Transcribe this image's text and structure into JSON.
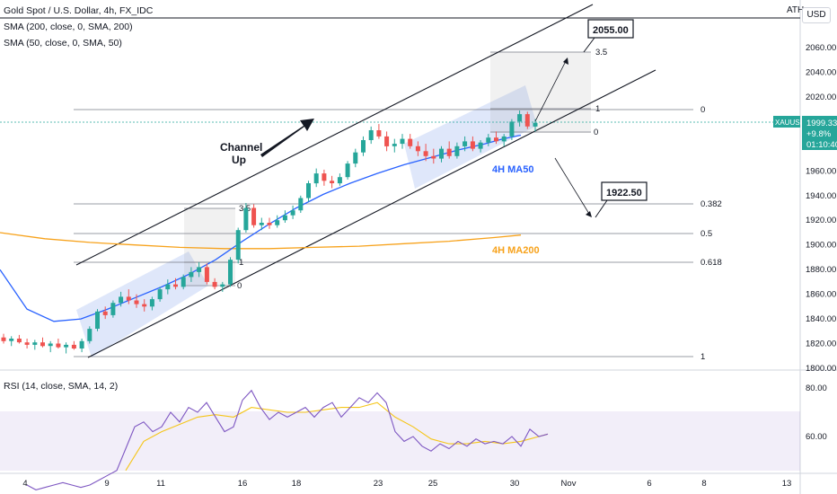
{
  "header": {
    "symbol_line": "Gold Spot / U.S. Dollar, 4h, FX_IDC",
    "sma200_label": "SMA (200, close, 0, SMA, 200)",
    "sma50_label": "SMA (50, close, 0, SMA, 50)",
    "rsi_label": "RSI (14, close, SMA, 14, 2)",
    "ath_label": "ATH",
    "currency_button": "USD"
  },
  "price_badge": {
    "symbol": "XAUUSD",
    "price": "1999.33",
    "change": "+9.8%",
    "timer": "01:10:40"
  },
  "annotations": {
    "channel_label_1": "Channel",
    "channel_label_2": "Up",
    "ma50_label": "4H MA50",
    "ma200_label": "4H MA200",
    "target_high": "2055.00",
    "target_low": "1922.50"
  },
  "fib_main": [
    "0",
    "0.382",
    "0.5",
    "0.618",
    "1"
  ],
  "fib_small_1": [
    "3.5",
    "1",
    "0"
  ],
  "fib_small_2": [
    "3.5",
    "1",
    "0"
  ],
  "colors": {
    "up": "#26a69a",
    "down": "#ef5350",
    "ma50": "#2962ff",
    "ma200": "#f7a21b",
    "rsi": "#7e57c2",
    "rsi_ma": "#f5c518",
    "channel_fill": "#c5d3f5"
  },
  "chart_data": {
    "type": "candlestick",
    "title": "Gold Spot / U.S. Dollar, 4h, FX_IDC",
    "y_axis": {
      "range": [
        1800,
        2080
      ],
      "ticks": [
        "2060.00",
        "2040.00",
        "2020.00",
        "2000.00",
        "1980.00",
        "1960.00",
        "1940.00",
        "1920.00",
        "1900.00",
        "1880.00",
        "1860.00",
        "1840.00",
        "1820.00",
        "1800.00"
      ]
    },
    "x_axis": {
      "ticks": [
        "4",
        "9",
        "11",
        "16",
        "18",
        "23",
        "25",
        "30",
        "Nov",
        "6",
        "8",
        "13"
      ]
    },
    "rsi_axis": {
      "ticks": [
        "80.00",
        "60.00"
      ]
    },
    "candles": [
      [
        1825,
        1828,
        1820,
        1822
      ],
      [
        1822,
        1826,
        1818,
        1824
      ],
      [
        1824,
        1827,
        1820,
        1821
      ],
      [
        1821,
        1824,
        1816,
        1819
      ],
      [
        1819,
        1823,
        1815,
        1821
      ],
      [
        1821,
        1825,
        1817,
        1818
      ],
      [
        1818,
        1822,
        1813,
        1820
      ],
      [
        1820,
        1824,
        1816,
        1817
      ],
      [
        1817,
        1821,
        1812,
        1819
      ],
      [
        1819,
        1822,
        1815,
        1816
      ],
      [
        1816,
        1824,
        1813,
        1822
      ],
      [
        1822,
        1834,
        1820,
        1832
      ],
      [
        1832,
        1848,
        1830,
        1846
      ],
      [
        1846,
        1850,
        1840,
        1843
      ],
      [
        1843,
        1855,
        1841,
        1853
      ],
      [
        1853,
        1862,
        1850,
        1858
      ],
      [
        1858,
        1864,
        1852,
        1855
      ],
      [
        1855,
        1860,
        1849,
        1852
      ],
      [
        1852,
        1856,
        1846,
        1850
      ],
      [
        1850,
        1858,
        1847,
        1856
      ],
      [
        1856,
        1866,
        1854,
        1864
      ],
      [
        1864,
        1872,
        1860,
        1868
      ],
      [
        1868,
        1873,
        1864,
        1866
      ],
      [
        1866,
        1876,
        1864,
        1874
      ],
      [
        1874,
        1882,
        1870,
        1878
      ],
      [
        1878,
        1886,
        1874,
        1882
      ],
      [
        1882,
        1885,
        1868,
        1870
      ],
      [
        1870,
        1873,
        1864,
        1866
      ],
      [
        1866,
        1870,
        1862,
        1868
      ],
      [
        1868,
        1890,
        1866,
        1888
      ],
      [
        1888,
        1914,
        1885,
        1912
      ],
      [
        1912,
        1934,
        1910,
        1930
      ],
      [
        1930,
        1933,
        1914,
        1916
      ],
      [
        1916,
        1922,
        1912,
        1918
      ],
      [
        1918,
        1922,
        1913,
        1916
      ],
      [
        1916,
        1924,
        1914,
        1920
      ],
      [
        1920,
        1928,
        1918,
        1924
      ],
      [
        1924,
        1932,
        1921,
        1928
      ],
      [
        1928,
        1940,
        1926,
        1938
      ],
      [
        1938,
        1952,
        1935,
        1950
      ],
      [
        1950,
        1962,
        1947,
        1958
      ],
      [
        1958,
        1961,
        1948,
        1952
      ],
      [
        1952,
        1956,
        1946,
        1950
      ],
      [
        1950,
        1958,
        1948,
        1955
      ],
      [
        1955,
        1968,
        1953,
        1966
      ],
      [
        1966,
        1978,
        1963,
        1975
      ],
      [
        1975,
        1988,
        1972,
        1985
      ],
      [
        1985,
        1996,
        1982,
        1993
      ],
      [
        1993,
        1998,
        1986,
        1988
      ],
      [
        1988,
        1992,
        1976,
        1980
      ],
      [
        1980,
        1986,
        1975,
        1982
      ],
      [
        1982,
        1990,
        1978,
        1986
      ],
      [
        1986,
        1990,
        1978,
        1980
      ],
      [
        1980,
        1984,
        1972,
        1976
      ],
      [
        1976,
        1982,
        1968,
        1972
      ],
      [
        1972,
        1978,
        1966,
        1970
      ],
      [
        1970,
        1980,
        1967,
        1978
      ],
      [
        1978,
        1984,
        1970,
        1972
      ],
      [
        1972,
        1983,
        1970,
        1980
      ],
      [
        1980,
        1988,
        1976,
        1984
      ],
      [
        1984,
        1988,
        1976,
        1978
      ],
      [
        1978,
        1985,
        1975,
        1983
      ],
      [
        1983,
        1990,
        1980,
        1987
      ],
      [
        1987,
        1992,
        1982,
        1984
      ],
      [
        1984,
        1990,
        1980,
        1988
      ],
      [
        1988,
        2002,
        1985,
        2000
      ],
      [
        2000,
        2009,
        1996,
        2006
      ],
      [
        2006,
        2008,
        1994,
        1996
      ],
      [
        1996,
        2002,
        1992,
        1999
      ]
    ],
    "ma50": [
      [
        0,
        1880
      ],
      [
        30,
        1848
      ],
      [
        60,
        1838
      ],
      [
        90,
        1840
      ],
      [
        120,
        1848
      ],
      [
        150,
        1857
      ],
      [
        180,
        1866
      ],
      [
        210,
        1876
      ],
      [
        240,
        1888
      ],
      [
        270,
        1903
      ],
      [
        300,
        1917
      ],
      [
        330,
        1930
      ],
      [
        360,
        1941
      ],
      [
        390,
        1950
      ],
      [
        420,
        1958
      ],
      [
        450,
        1965
      ],
      [
        480,
        1971
      ],
      [
        510,
        1977
      ],
      [
        540,
        1982
      ],
      [
        560,
        1986
      ],
      [
        580,
        1989
      ]
    ],
    "ma200": [
      [
        0,
        1910
      ],
      [
        50,
        1905
      ],
      [
        100,
        1902
      ],
      [
        150,
        1900
      ],
      [
        200,
        1898
      ],
      [
        250,
        1897
      ],
      [
        300,
        1897
      ],
      [
        350,
        1898
      ],
      [
        400,
        1899
      ],
      [
        450,
        1901
      ],
      [
        500,
        1903
      ],
      [
        550,
        1906
      ],
      [
        580,
        1908
      ]
    ],
    "rsi": [
      [
        0,
        40
      ],
      [
        10,
        38
      ],
      [
        20,
        39
      ],
      [
        30,
        40
      ],
      [
        40,
        41
      ],
      [
        50,
        40
      ],
      [
        60,
        39
      ],
      [
        70,
        40
      ],
      [
        80,
        42
      ],
      [
        90,
        44
      ],
      [
        100,
        46
      ],
      [
        110,
        55
      ],
      [
        120,
        64
      ],
      [
        130,
        66
      ],
      [
        140,
        62
      ],
      [
        150,
        64
      ],
      [
        160,
        70
      ],
      [
        170,
        66
      ],
      [
        180,
        72
      ],
      [
        190,
        70
      ],
      [
        200,
        74
      ],
      [
        210,
        68
      ],
      [
        220,
        62
      ],
      [
        230,
        64
      ],
      [
        240,
        75
      ],
      [
        250,
        79
      ],
      [
        260,
        72
      ],
      [
        270,
        67
      ],
      [
        280,
        70
      ],
      [
        290,
        68
      ],
      [
        300,
        70
      ],
      [
        310,
        72
      ],
      [
        320,
        68
      ],
      [
        330,
        72
      ],
      [
        340,
        74
      ],
      [
        350,
        68
      ],
      [
        360,
        72
      ],
      [
        370,
        76
      ],
      [
        380,
        74
      ],
      [
        390,
        78
      ],
      [
        400,
        74
      ],
      [
        410,
        62
      ],
      [
        420,
        58
      ],
      [
        430,
        60
      ],
      [
        440,
        56
      ],
      [
        450,
        54
      ],
      [
        460,
        57
      ],
      [
        470,
        55
      ],
      [
        480,
        58
      ],
      [
        490,
        56
      ],
      [
        500,
        59
      ],
      [
        510,
        57
      ],
      [
        520,
        58
      ],
      [
        530,
        57
      ],
      [
        540,
        60
      ],
      [
        550,
        56
      ],
      [
        560,
        63
      ],
      [
        570,
        60
      ],
      [
        580,
        61
      ]
    ],
    "rsi_ma": [
      [
        110,
        46
      ],
      [
        130,
        58
      ],
      [
        150,
        62
      ],
      [
        170,
        65
      ],
      [
        190,
        68
      ],
      [
        210,
        69
      ],
      [
        230,
        68
      ],
      [
        250,
        72
      ],
      [
        270,
        71
      ],
      [
        290,
        70
      ],
      [
        310,
        70
      ],
      [
        330,
        71
      ],
      [
        350,
        72
      ],
      [
        370,
        72
      ],
      [
        390,
        74
      ],
      [
        410,
        68
      ],
      [
        430,
        64
      ],
      [
        450,
        59
      ],
      [
        470,
        57
      ],
      [
        490,
        57
      ],
      [
        510,
        58
      ],
      [
        530,
        57
      ],
      [
        550,
        58
      ],
      [
        570,
        60
      ],
      [
        580,
        61
      ]
    ]
  }
}
